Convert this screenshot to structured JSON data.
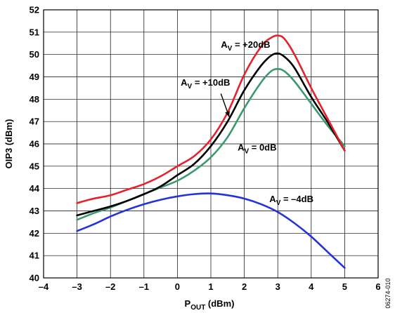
{
  "chart_data": {
    "type": "line",
    "title": "",
    "xlabel": {
      "main": "P",
      "sub": "OUT",
      "rest": " (dBm)"
    },
    "ylabel": "OIP3 (dBm)",
    "xlim": [
      -4,
      6
    ],
    "ylim": [
      40,
      52
    ],
    "xticks": [
      -4,
      -3,
      -2,
      -1,
      0,
      1,
      2,
      3,
      4,
      5,
      6
    ],
    "yticks": [
      40,
      41,
      42,
      43,
      44,
      45,
      46,
      47,
      48,
      49,
      50,
      51,
      52
    ],
    "xtick_labels": [
      "–4",
      "–3",
      "–2",
      "–1",
      "0",
      "1",
      "2",
      "3",
      "4",
      "5",
      "6"
    ],
    "ytick_labels": [
      "40",
      "41",
      "42",
      "43",
      "44",
      "45",
      "46",
      "47",
      "48",
      "49",
      "50",
      "51",
      "52"
    ],
    "grid": true,
    "series": [
      {
        "name": "AV = +20dB",
        "color": "#e8202a",
        "x": [
          -3,
          -2.5,
          -2,
          -1.5,
          -1,
          -0.5,
          0,
          0.5,
          1,
          1.5,
          2,
          2.5,
          2.8,
          3,
          3.2,
          3.5,
          4,
          4.5,
          5
        ],
        "y": [
          43.35,
          43.55,
          43.7,
          43.95,
          44.2,
          44.55,
          45.0,
          45.45,
          46.2,
          47.4,
          49.1,
          50.35,
          50.75,
          50.85,
          50.7,
          50.0,
          48.5,
          47.1,
          45.7
        ]
      },
      {
        "name": "AV = +10dB",
        "color": "#000000",
        "x": [
          -3,
          -2.5,
          -2,
          -1.5,
          -1,
          -0.5,
          0,
          0.5,
          1,
          1.5,
          2,
          2.5,
          2.8,
          3,
          3.2,
          3.5,
          4,
          4.5,
          5
        ],
        "y": [
          42.8,
          43.0,
          43.2,
          43.45,
          43.75,
          44.1,
          44.6,
          45.1,
          45.9,
          47.0,
          48.4,
          49.5,
          49.95,
          50.05,
          49.9,
          49.4,
          48.1,
          46.95,
          45.7
        ]
      },
      {
        "name": "AV = 0dB",
        "color": "#3a9a6e",
        "x": [
          -3,
          -2.5,
          -2,
          -1.5,
          -1,
          -0.5,
          0,
          0.5,
          1,
          1.5,
          2,
          2.5,
          2.8,
          3,
          3.2,
          3.5,
          4,
          4.5,
          5
        ],
        "y": [
          42.6,
          42.9,
          43.15,
          43.45,
          43.75,
          44.05,
          44.35,
          44.8,
          45.4,
          46.3,
          47.6,
          48.75,
          49.25,
          49.35,
          49.25,
          48.8,
          47.8,
          46.8,
          45.9
        ]
      },
      {
        "name": "AV = –4dB",
        "color": "#2233dd",
        "x": [
          -3,
          -2.5,
          -2,
          -1.5,
          -1,
          -0.5,
          0,
          0.5,
          1,
          1.5,
          2,
          2.5,
          3,
          3.5,
          4,
          4.5,
          5
        ],
        "y": [
          42.1,
          42.4,
          42.75,
          43.05,
          43.3,
          43.5,
          43.65,
          43.75,
          43.78,
          43.7,
          43.55,
          43.3,
          42.95,
          42.45,
          41.85,
          41.15,
          40.45
        ]
      }
    ],
    "annotations": [
      {
        "main": "A",
        "sub": "V",
        "rest": " = +20dB"
      },
      {
        "main": "A",
        "sub": "V",
        "rest": " = +10dB"
      },
      {
        "main": "A",
        "sub": "V",
        "rest": " = 0dB"
      },
      {
        "main": "A",
        "sub": "V",
        "rest": " = –4dB"
      }
    ],
    "figure_id": "06274-010"
  }
}
